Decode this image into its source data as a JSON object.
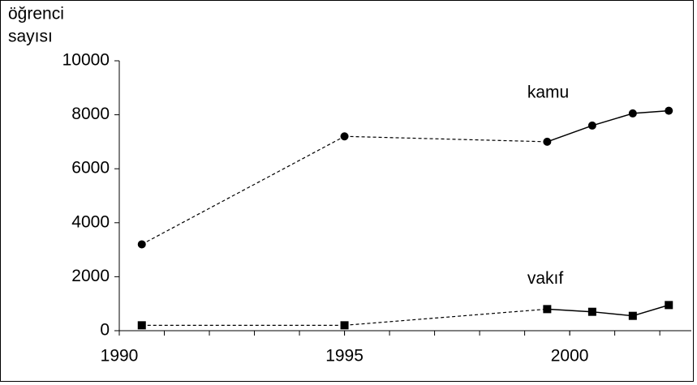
{
  "chart_data": {
    "type": "line",
    "ylabel": [
      "öğrenci",
      "sayısı"
    ],
    "x": [
      1990.5,
      1995,
      1999.5,
      2000.5,
      2001.4,
      2002.2
    ],
    "series": [
      {
        "name": "kamu",
        "color": "#000000",
        "marker": "circle",
        "dashed_segments": [
          0,
          1
        ],
        "values": [
          3200,
          7200,
          7000,
          7600,
          8050,
          8150
        ]
      },
      {
        "name": "vakıf",
        "color": "#000000",
        "marker": "square",
        "dashed_segments": [
          0,
          1
        ],
        "values": [
          200,
          200,
          800,
          700,
          550,
          950
        ]
      }
    ],
    "xlim": [
      1990,
      2002.7
    ],
    "xticks": [
      1990,
      1995,
      2000
    ],
    "xminor_step": 1,
    "ylim": [
      0,
      10000
    ],
    "yticks": [
      0,
      2000,
      4000,
      6000,
      8000,
      10000
    ]
  }
}
